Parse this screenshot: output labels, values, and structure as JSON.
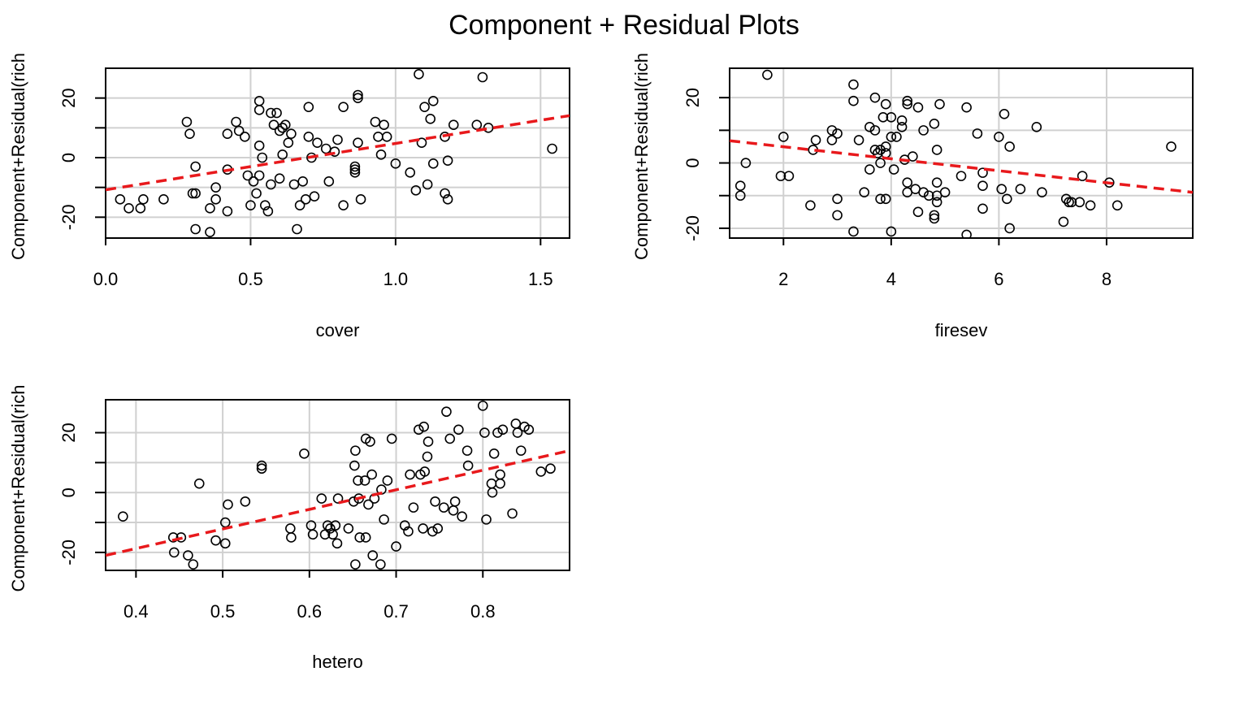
{
  "figure": {
    "title": "Component + Residual Plots"
  },
  "colors": {
    "trend_line": "#e8191c",
    "grid": "#d0d0d0",
    "points": "#000000",
    "axes": "#000000"
  },
  "chart_data": [
    {
      "type": "scatter",
      "xlabel": "cover",
      "ylabel": "Component+Residual(rich",
      "xlim": [
        0.0,
        1.6
      ],
      "ylim": [
        -27,
        30
      ],
      "xticks": [
        0.0,
        0.5,
        1.0,
        1.5
      ],
      "xtick_labels": [
        "0.0",
        "0.5",
        "1.0",
        "1.5"
      ],
      "yticks": [
        -20,
        0,
        20
      ],
      "ytick_labels": [
        "-20",
        "0",
        "20"
      ],
      "minor_yticks": [
        -10,
        10
      ],
      "grid": true,
      "fit_line": {
        "x": [
          0.0,
          1.6
        ],
        "y": [
          -10.8,
          14.1
        ]
      },
      "points": [
        [
          0.05,
          -14
        ],
        [
          0.08,
          -17
        ],
        [
          0.12,
          -17
        ],
        [
          0.13,
          -14
        ],
        [
          0.2,
          -14
        ],
        [
          0.28,
          12
        ],
        [
          0.29,
          8
        ],
        [
          0.3,
          -12
        ],
        [
          0.31,
          -12
        ],
        [
          0.31,
          -3
        ],
        [
          0.31,
          -24
        ],
        [
          0.36,
          -17
        ],
        [
          0.36,
          -25
        ],
        [
          0.38,
          -14
        ],
        [
          0.38,
          -10
        ],
        [
          0.42,
          -4
        ],
        [
          0.42,
          -18
        ],
        [
          0.42,
          8
        ],
        [
          0.45,
          12
        ],
        [
          0.46,
          9
        ],
        [
          0.48,
          7
        ],
        [
          0.49,
          -6
        ],
        [
          0.5,
          -16
        ],
        [
          0.51,
          -8
        ],
        [
          0.52,
          -12
        ],
        [
          0.53,
          -6
        ],
        [
          0.53,
          4
        ],
        [
          0.53,
          19
        ],
        [
          0.53,
          16
        ],
        [
          0.54,
          0
        ],
        [
          0.55,
          -16
        ],
        [
          0.56,
          -18
        ],
        [
          0.57,
          -9
        ],
        [
          0.57,
          15
        ],
        [
          0.58,
          11
        ],
        [
          0.59,
          15
        ],
        [
          0.6,
          9
        ],
        [
          0.6,
          -7
        ],
        [
          0.61,
          1
        ],
        [
          0.61,
          10
        ],
        [
          0.62,
          11
        ],
        [
          0.63,
          5
        ],
        [
          0.64,
          8
        ],
        [
          0.65,
          -9
        ],
        [
          0.66,
          -24
        ],
        [
          0.67,
          -16
        ],
        [
          0.68,
          -8
        ],
        [
          0.69,
          -14
        ],
        [
          0.7,
          17
        ],
        [
          0.7,
          7
        ],
        [
          0.71,
          0
        ],
        [
          0.72,
          -13
        ],
        [
          0.73,
          5
        ],
        [
          0.76,
          3
        ],
        [
          0.77,
          -8
        ],
        [
          0.79,
          2
        ],
        [
          0.8,
          6
        ],
        [
          0.82,
          -16
        ],
        [
          0.82,
          17
        ],
        [
          0.86,
          -3
        ],
        [
          0.86,
          -5
        ],
        [
          0.86,
          -4
        ],
        [
          0.87,
          20
        ],
        [
          0.87,
          21
        ],
        [
          0.87,
          5
        ],
        [
          0.88,
          -14
        ],
        [
          0.93,
          12
        ],
        [
          0.94,
          7
        ],
        [
          0.95,
          1
        ],
        [
          0.96,
          11
        ],
        [
          0.97,
          7
        ],
        [
          1.0,
          -2
        ],
        [
          1.05,
          -5
        ],
        [
          1.07,
          -11
        ],
        [
          1.08,
          28
        ],
        [
          1.09,
          5
        ],
        [
          1.1,
          17
        ],
        [
          1.11,
          -9
        ],
        [
          1.12,
          13
        ],
        [
          1.13,
          19
        ],
        [
          1.13,
          -2
        ],
        [
          1.17,
          7
        ],
        [
          1.17,
          -12
        ],
        [
          1.18,
          -14
        ],
        [
          1.18,
          -1
        ],
        [
          1.2,
          11
        ],
        [
          1.28,
          11
        ],
        [
          1.3,
          27
        ],
        [
          1.32,
          10
        ],
        [
          1.54,
          3
        ]
      ]
    },
    {
      "type": "scatter",
      "xlabel": "firesev",
      "ylabel": "Component+Residual(rich",
      "xlim": [
        1.0,
        9.6
      ],
      "ylim": [
        -23,
        29
      ],
      "xticks": [
        2,
        4,
        6,
        8
      ],
      "xtick_labels": [
        "2",
        "4",
        "6",
        "8"
      ],
      "yticks": [
        -20,
        0,
        20
      ],
      "ytick_labels": [
        "-20",
        "0",
        "20"
      ],
      "minor_yticks": [
        -10,
        10
      ],
      "grid": true,
      "fit_line": {
        "x": [
          1.0,
          9.6
        ],
        "y": [
          6.8,
          -9.0
        ]
      },
      "points": [
        [
          1.2,
          -7
        ],
        [
          1.2,
          -10
        ],
        [
          1.3,
          0
        ],
        [
          1.7,
          27
        ],
        [
          1.95,
          -4
        ],
        [
          2.0,
          8
        ],
        [
          2.1,
          -4
        ],
        [
          2.5,
          -13
        ],
        [
          2.55,
          4
        ],
        [
          2.6,
          7
        ],
        [
          2.9,
          10
        ],
        [
          2.9,
          7
        ],
        [
          3.0,
          9
        ],
        [
          3.0,
          -11
        ],
        [
          3.0,
          -16
        ],
        [
          3.3,
          -21
        ],
        [
          3.3,
          24
        ],
        [
          3.3,
          19
        ],
        [
          3.4,
          7
        ],
        [
          3.5,
          -9
        ],
        [
          3.6,
          -2
        ],
        [
          3.6,
          11
        ],
        [
          3.7,
          20
        ],
        [
          3.7,
          4
        ],
        [
          3.7,
          10
        ],
        [
          3.75,
          3
        ],
        [
          3.8,
          -11
        ],
        [
          3.8,
          0
        ],
        [
          3.8,
          4
        ],
        [
          3.85,
          14
        ],
        [
          3.9,
          18
        ],
        [
          3.9,
          3
        ],
        [
          3.9,
          5
        ],
        [
          3.9,
          -11
        ],
        [
          4.0,
          -21
        ],
        [
          4.0,
          14
        ],
        [
          4.0,
          8
        ],
        [
          4.05,
          -2
        ],
        [
          4.1,
          8
        ],
        [
          4.2,
          11
        ],
        [
          4.2,
          13
        ],
        [
          4.25,
          1
        ],
        [
          4.3,
          -6
        ],
        [
          4.3,
          -9
        ],
        [
          4.3,
          18
        ],
        [
          4.3,
          19
        ],
        [
          4.4,
          2
        ],
        [
          4.45,
          -8
        ],
        [
          4.5,
          -15
        ],
        [
          4.5,
          17
        ],
        [
          4.6,
          10
        ],
        [
          4.6,
          -9
        ],
        [
          4.7,
          -10
        ],
        [
          4.8,
          12
        ],
        [
          4.8,
          -16
        ],
        [
          4.8,
          -17
        ],
        [
          4.85,
          -6
        ],
        [
          4.85,
          -10
        ],
        [
          4.85,
          4
        ],
        [
          4.85,
          -12
        ],
        [
          4.9,
          18
        ],
        [
          5.0,
          -9
        ],
        [
          5.3,
          -4
        ],
        [
          5.4,
          -22
        ],
        [
          5.4,
          17
        ],
        [
          5.6,
          9
        ],
        [
          5.7,
          -3
        ],
        [
          5.7,
          -7
        ],
        [
          5.7,
          -14
        ],
        [
          6.0,
          8
        ],
        [
          6.05,
          -8
        ],
        [
          6.1,
          15
        ],
        [
          6.15,
          -11
        ],
        [
          6.2,
          5
        ],
        [
          6.2,
          -20
        ],
        [
          6.4,
          -8
        ],
        [
          6.7,
          11
        ],
        [
          6.8,
          -9
        ],
        [
          7.2,
          -18
        ],
        [
          7.25,
          -11
        ],
        [
          7.3,
          -12
        ],
        [
          7.35,
          -12
        ],
        [
          7.5,
          -12
        ],
        [
          7.55,
          -4
        ],
        [
          7.7,
          -13
        ],
        [
          8.05,
          -6
        ],
        [
          8.2,
          -13
        ],
        [
          9.2,
          5
        ]
      ]
    },
    {
      "type": "scatter",
      "xlabel": "hetero",
      "ylabel": "Component+Residual(rich",
      "xlim": [
        0.365,
        0.9
      ],
      "ylim": [
        -26,
        31
      ],
      "xticks": [
        0.4,
        0.5,
        0.6,
        0.7,
        0.8
      ],
      "xtick_labels": [
        "0.4",
        "0.5",
        "0.6",
        "0.7",
        "0.8"
      ],
      "yticks": [
        -20,
        0,
        20
      ],
      "ytick_labels": [
        "-20",
        "0",
        "20"
      ],
      "minor_yticks": [
        -10,
        10
      ],
      "grid": true,
      "fit_line": {
        "x": [
          0.365,
          0.9
        ],
        "y": [
          -21,
          14
        ]
      },
      "points": [
        [
          0.385,
          -8
        ],
        [
          0.443,
          -15
        ],
        [
          0.444,
          -20
        ],
        [
          0.452,
          -15
        ],
        [
          0.46,
          -21
        ],
        [
          0.466,
          -24
        ],
        [
          0.473,
          3
        ],
        [
          0.492,
          -16
        ],
        [
          0.503,
          -17
        ],
        [
          0.503,
          -10
        ],
        [
          0.506,
          -4
        ],
        [
          0.526,
          -3
        ],
        [
          0.545,
          8
        ],
        [
          0.545,
          9
        ],
        [
          0.578,
          -12
        ],
        [
          0.579,
          -15
        ],
        [
          0.594,
          13
        ],
        [
          0.602,
          -11
        ],
        [
          0.604,
          -14
        ],
        [
          0.614,
          -2
        ],
        [
          0.618,
          -14
        ],
        [
          0.621,
          -11
        ],
        [
          0.624,
          -12
        ],
        [
          0.627,
          -14
        ],
        [
          0.63,
          -11
        ],
        [
          0.632,
          -17
        ],
        [
          0.633,
          -2
        ],
        [
          0.645,
          -12
        ],
        [
          0.651,
          -3
        ],
        [
          0.652,
          9
        ],
        [
          0.653,
          14
        ],
        [
          0.653,
          -24
        ],
        [
          0.656,
          4
        ],
        [
          0.657,
          -2
        ],
        [
          0.658,
          -15
        ],
        [
          0.664,
          4
        ],
        [
          0.665,
          -15
        ],
        [
          0.665,
          18
        ],
        [
          0.668,
          -4
        ],
        [
          0.67,
          17
        ],
        [
          0.672,
          6
        ],
        [
          0.673,
          -21
        ],
        [
          0.675,
          -2
        ],
        [
          0.682,
          -24
        ],
        [
          0.683,
          1
        ],
        [
          0.686,
          -9
        ],
        [
          0.69,
          4
        ],
        [
          0.695,
          18
        ],
        [
          0.7,
          -18
        ],
        [
          0.71,
          -11
        ],
        [
          0.714,
          -13
        ],
        [
          0.716,
          6
        ],
        [
          0.72,
          -5
        ],
        [
          0.726,
          21
        ],
        [
          0.728,
          6
        ],
        [
          0.731,
          -12
        ],
        [
          0.732,
          22
        ],
        [
          0.733,
          7
        ],
        [
          0.736,
          12
        ],
        [
          0.737,
          17
        ],
        [
          0.742,
          -13
        ],
        [
          0.745,
          -3
        ],
        [
          0.748,
          -12
        ],
        [
          0.755,
          -5
        ],
        [
          0.758,
          27
        ],
        [
          0.762,
          18
        ],
        [
          0.766,
          -6
        ],
        [
          0.768,
          -3
        ],
        [
          0.772,
          21
        ],
        [
          0.776,
          -8
        ],
        [
          0.782,
          14
        ],
        [
          0.783,
          9
        ],
        [
          0.8,
          29
        ],
        [
          0.802,
          20
        ],
        [
          0.804,
          -9
        ],
        [
          0.81,
          3
        ],
        [
          0.811,
          0
        ],
        [
          0.813,
          13
        ],
        [
          0.817,
          20
        ],
        [
          0.82,
          6
        ],
        [
          0.82,
          3
        ],
        [
          0.823,
          21
        ],
        [
          0.834,
          -7
        ],
        [
          0.838,
          23
        ],
        [
          0.84,
          20
        ],
        [
          0.844,
          14
        ],
        [
          0.848,
          22
        ],
        [
          0.853,
          21
        ],
        [
          0.867,
          7
        ],
        [
          0.878,
          8
        ]
      ]
    }
  ]
}
